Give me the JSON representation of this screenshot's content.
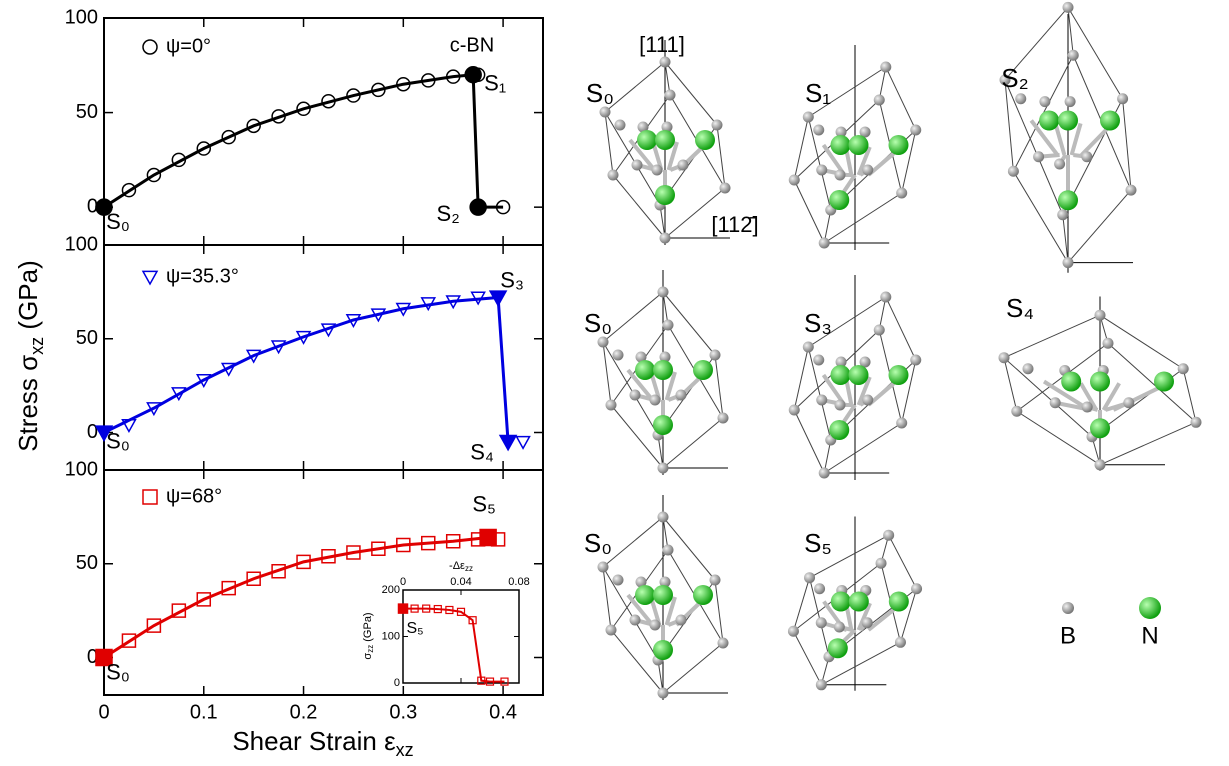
{
  "chart_data": [
    {
      "type": "line",
      "xlim": [
        0,
        0.44
      ],
      "ylim": [
        -20,
        100
      ],
      "yticks": [
        0,
        50,
        100
      ],
      "series": [
        {
          "name": "ψ=0°",
          "color": "#000000",
          "marker": "circle",
          "x": [
            0,
            0.025,
            0.05,
            0.075,
            0.1,
            0.125,
            0.15,
            0.175,
            0.2,
            0.225,
            0.25,
            0.275,
            0.3,
            0.325,
            0.35,
            0.375,
            0.4
          ],
          "values": [
            0,
            9,
            17,
            25,
            31,
            37,
            43,
            48,
            52,
            56,
            59,
            62,
            65,
            67,
            69,
            70,
            0
          ]
        },
        {
          "color": "#000000",
          "x": [
            0,
            0.05,
            0.1,
            0.15,
            0.2,
            0.25,
            0.3,
            0.35,
            0.37,
            0.375,
            0.4
          ],
          "values": [
            0,
            17,
            31,
            43,
            52,
            59,
            65,
            69,
            70,
            0,
            0
          ]
        }
      ],
      "states": [
        {
          "label": "S₀",
          "x": 0,
          "y": 0
        },
        {
          "label": "S₁",
          "x": 0.37,
          "y": 70
        },
        {
          "label": "S₂",
          "x": 0.375,
          "y": 0
        }
      ],
      "annotation": "c-BN"
    },
    {
      "type": "line",
      "xlim": [
        0,
        0.44
      ],
      "ylim": [
        -20,
        100
      ],
      "yticks": [
        0,
        50,
        100
      ],
      "series": [
        {
          "name": "ψ=35.3°",
          "color": "#0000e0",
          "marker": "triangle",
          "x": [
            0,
            0.025,
            0.05,
            0.075,
            0.1,
            0.125,
            0.15,
            0.175,
            0.2,
            0.225,
            0.25,
            0.275,
            0.3,
            0.325,
            0.35,
            0.375,
            0.42
          ],
          "values": [
            0,
            4,
            13,
            21,
            28,
            34,
            41,
            46,
            51,
            55,
            60,
            63,
            66,
            69,
            70,
            72,
            -5
          ]
        },
        {
          "color": "#0000e0",
          "x": [
            0,
            0.05,
            0.1,
            0.15,
            0.2,
            0.25,
            0.3,
            0.35,
            0.395,
            0.405
          ],
          "values": [
            0,
            13,
            28,
            41,
            51,
            60,
            66,
            70,
            72,
            -5
          ]
        }
      ],
      "states": [
        {
          "label": "S₀",
          "x": 0,
          "y": 0
        },
        {
          "label": "S₃",
          "x": 0.395,
          "y": 72
        },
        {
          "label": "S₄",
          "x": 0.405,
          "y": -5
        }
      ]
    },
    {
      "type": "line",
      "xlim": [
        0,
        0.44
      ],
      "ylim": [
        -20,
        100
      ],
      "yticks": [
        0,
        50,
        100
      ],
      "xticks": [
        0,
        0.1,
        0.2,
        0.3,
        0.4
      ],
      "series": [
        {
          "name": "ψ=68°",
          "color": "#e00000",
          "marker": "square",
          "x": [
            0,
            0.025,
            0.05,
            0.075,
            0.1,
            0.125,
            0.15,
            0.175,
            0.2,
            0.225,
            0.25,
            0.275,
            0.3,
            0.325,
            0.35,
            0.375,
            0.395
          ],
          "values": [
            0,
            9,
            17,
            25,
            31,
            37,
            42,
            46,
            51,
            54,
            56,
            58,
            60,
            61,
            62,
            63,
            63
          ]
        },
        {
          "color": "#e00000",
          "x": [
            0,
            0.05,
            0.1,
            0.15,
            0.2,
            0.25,
            0.3,
            0.35,
            0.385
          ],
          "values": [
            0,
            17,
            31,
            42,
            51,
            56,
            60,
            62,
            64
          ]
        }
      ],
      "states": [
        {
          "label": "S₀",
          "x": 0,
          "y": 0
        },
        {
          "label": "S₅",
          "x": 0.385,
          "y": 64
        }
      ]
    },
    {
      "type": "line",
      "xlabel": "-Δε",
      "xlabel_sub": "zz",
      "ylabel": "σ",
      "ylabel_sub": "zz",
      "ylabel_unit": " (GPa)",
      "xlim": [
        0,
        0.08
      ],
      "xticks": [
        0,
        0.04,
        0.08
      ],
      "ylim": [
        0,
        200
      ],
      "yticks": [
        0,
        100,
        200
      ],
      "series": [
        {
          "color": "#e00000",
          "marker": "square",
          "x": [
            0,
            0.008,
            0.016,
            0.024,
            0.032,
            0.04,
            0.048,
            0.054,
            0.06,
            0.07
          ],
          "values": [
            160,
            160,
            160,
            159,
            157,
            153,
            135,
            5,
            3,
            3
          ]
        }
      ],
      "states": [
        {
          "label": "S₅",
          "x": 0,
          "y": 160
        }
      ]
    }
  ],
  "figure": {
    "xlabel": "Shear Strain ε",
    "xlabel_sub": "xz",
    "ylabel": "Stress σ",
    "ylabel_sub": "xz",
    "ylabel_unit": " (GPa)"
  },
  "structures": {
    "labels": [
      "S₀",
      "S₁",
      "S₂",
      "S₀",
      "S₃",
      "S₄",
      "S₀",
      "S₅"
    ],
    "axis_111": "[111]",
    "axis_112": "[112̄]",
    "legend": [
      "B",
      "N"
    ]
  }
}
